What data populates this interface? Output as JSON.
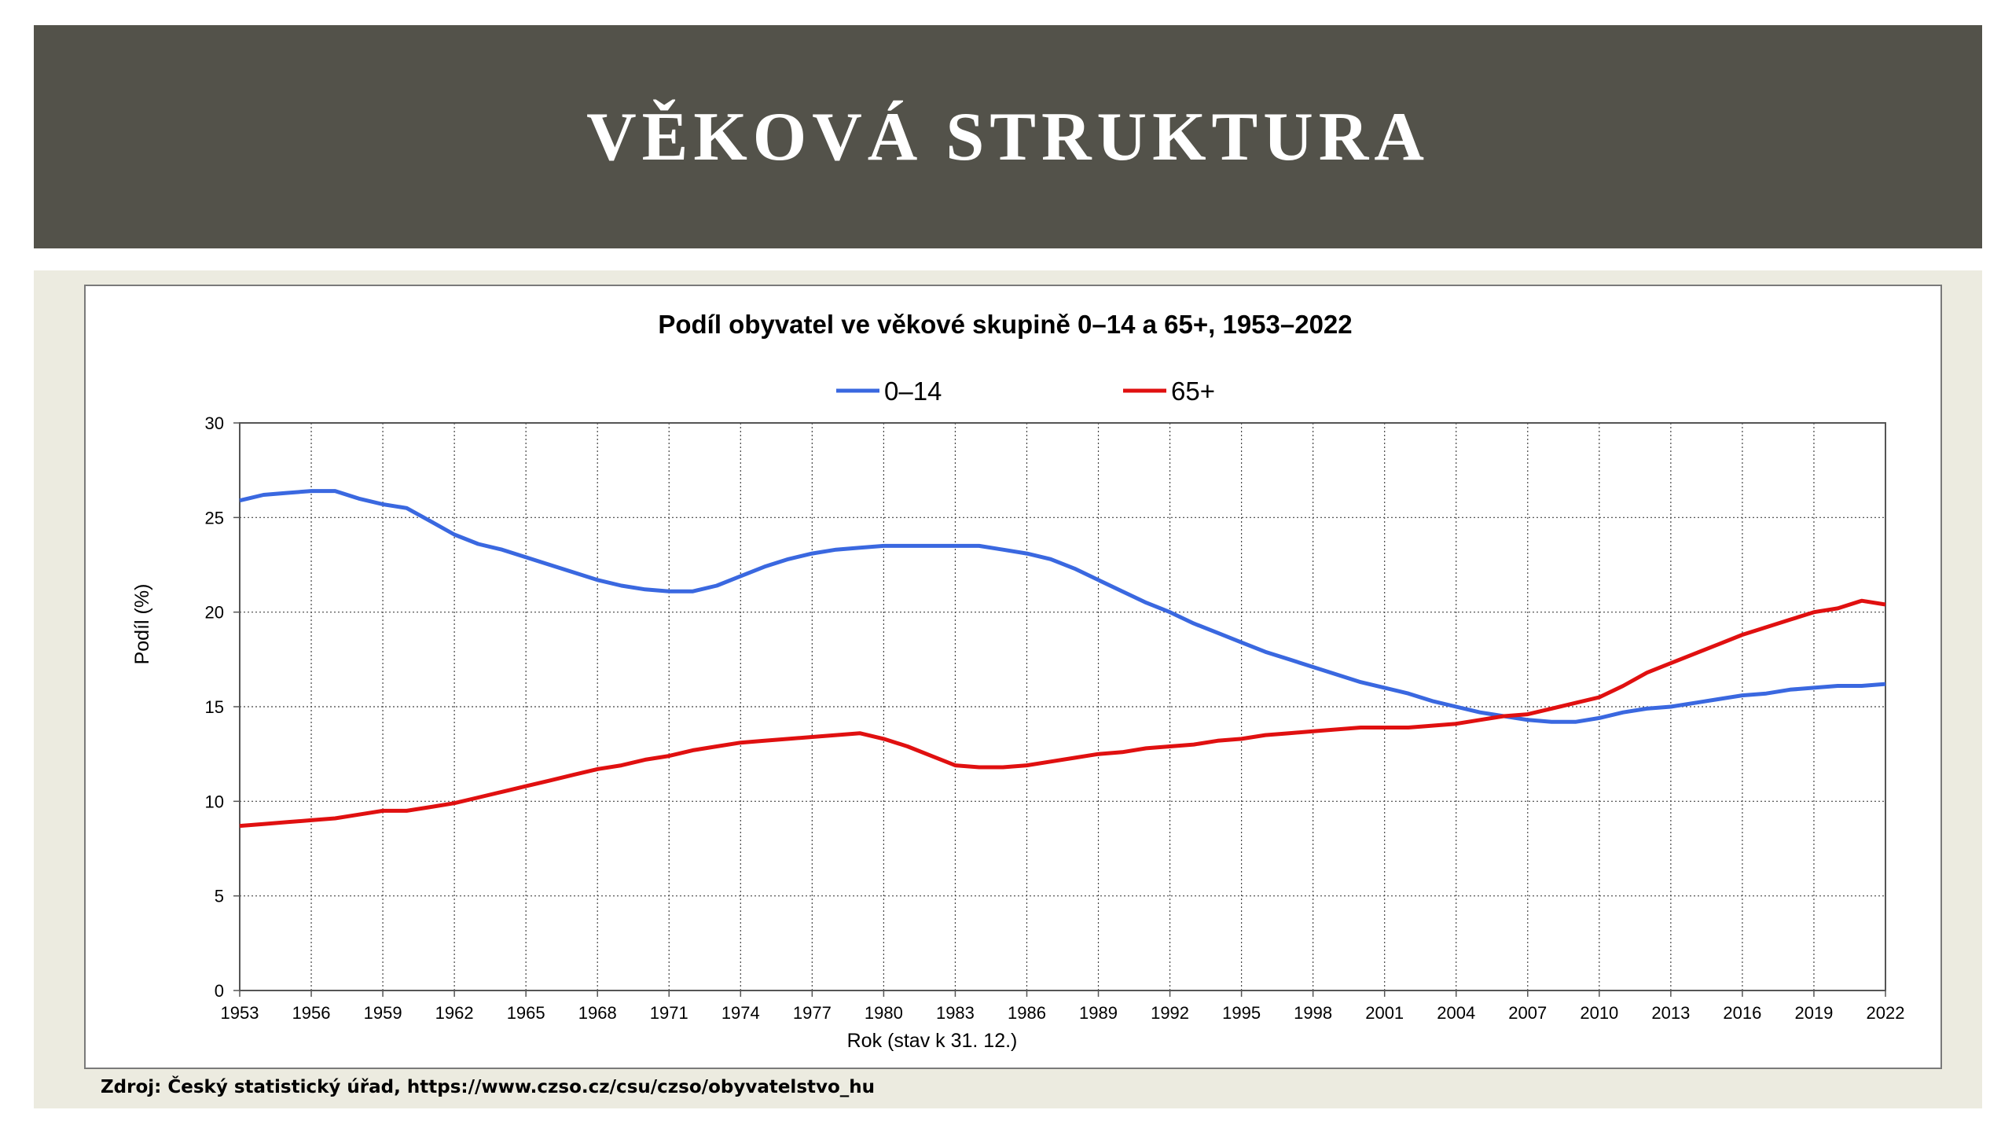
{
  "slide": {
    "title": "VĚKOVÁ STRUKTURA",
    "source": "Zdroj: Český statistický úřad, https://www.czso.cz/csu/czso/obyvatelstvo_hu"
  },
  "colors": {
    "title_bar": "#53524a",
    "content_bg": "#ecebe0",
    "series_0_14": "#3a68e0",
    "series_65": "#e01010"
  },
  "chart_data": {
    "type": "line",
    "title": "Podíl obyvatel ve věkové skupině 0–14 a 65+, 1953–2022",
    "xlabel": "Rok (stav k 31. 12.)",
    "ylabel": "Podíl (%)",
    "xlim": [
      1953,
      2022
    ],
    "ylim": [
      0,
      30
    ],
    "x_ticks": [
      1953,
      1956,
      1959,
      1962,
      1965,
      1968,
      1971,
      1974,
      1977,
      1980,
      1983,
      1986,
      1989,
      1992,
      1995,
      1998,
      2001,
      2004,
      2007,
      2010,
      2013,
      2016,
      2019,
      2022
    ],
    "y_ticks": [
      0,
      5,
      10,
      15,
      20,
      25,
      30
    ],
    "grid": true,
    "legend_position": "top",
    "x": [
      1953,
      1954,
      1955,
      1956,
      1957,
      1958,
      1959,
      1960,
      1961,
      1962,
      1963,
      1964,
      1965,
      1966,
      1967,
      1968,
      1969,
      1970,
      1971,
      1972,
      1973,
      1974,
      1975,
      1976,
      1977,
      1978,
      1979,
      1980,
      1981,
      1982,
      1983,
      1984,
      1985,
      1986,
      1987,
      1988,
      1989,
      1990,
      1991,
      1992,
      1993,
      1994,
      1995,
      1996,
      1997,
      1998,
      1999,
      2000,
      2001,
      2002,
      2003,
      2004,
      2005,
      2006,
      2007,
      2008,
      2009,
      2010,
      2011,
      2012,
      2013,
      2014,
      2015,
      2016,
      2017,
      2018,
      2019,
      2020,
      2021,
      2022
    ],
    "series": [
      {
        "name": "0–14",
        "color": "#3a68e0",
        "values": [
          25.9,
          26.2,
          26.3,
          26.4,
          26.4,
          26.0,
          25.7,
          25.5,
          24.8,
          24.1,
          23.6,
          23.3,
          22.9,
          22.5,
          22.1,
          21.7,
          21.4,
          21.2,
          21.1,
          21.1,
          21.4,
          21.9,
          22.4,
          22.8,
          23.1,
          23.3,
          23.4,
          23.5,
          23.5,
          23.5,
          23.5,
          23.5,
          23.3,
          23.1,
          22.8,
          22.3,
          21.7,
          21.1,
          20.5,
          20.0,
          19.4,
          18.9,
          18.4,
          17.9,
          17.5,
          17.1,
          16.7,
          16.3,
          16.0,
          15.7,
          15.3,
          15.0,
          14.7,
          14.5,
          14.3,
          14.2,
          14.2,
          14.4,
          14.7,
          14.9,
          15.0,
          15.2,
          15.4,
          15.6,
          15.7,
          15.9,
          16.0,
          16.1,
          16.1,
          16.2
        ]
      },
      {
        "name": "65+",
        "color": "#e01010",
        "values": [
          8.7,
          8.8,
          8.9,
          9.0,
          9.1,
          9.3,
          9.5,
          9.5,
          9.7,
          9.9,
          10.2,
          10.5,
          10.8,
          11.1,
          11.4,
          11.7,
          11.9,
          12.2,
          12.4,
          12.7,
          12.9,
          13.1,
          13.2,
          13.3,
          13.4,
          13.5,
          13.6,
          13.3,
          12.9,
          12.4,
          11.9,
          11.8,
          11.8,
          11.9,
          12.1,
          12.3,
          12.5,
          12.6,
          12.8,
          12.9,
          13.0,
          13.2,
          13.3,
          13.5,
          13.6,
          13.7,
          13.8,
          13.9,
          13.9,
          13.9,
          14.0,
          14.1,
          14.3,
          14.5,
          14.6,
          14.9,
          15.2,
          15.5,
          16.1,
          16.8,
          17.3,
          17.8,
          18.3,
          18.8,
          19.2,
          19.6,
          20.0,
          20.2,
          20.6,
          20.4
        ]
      }
    ]
  }
}
